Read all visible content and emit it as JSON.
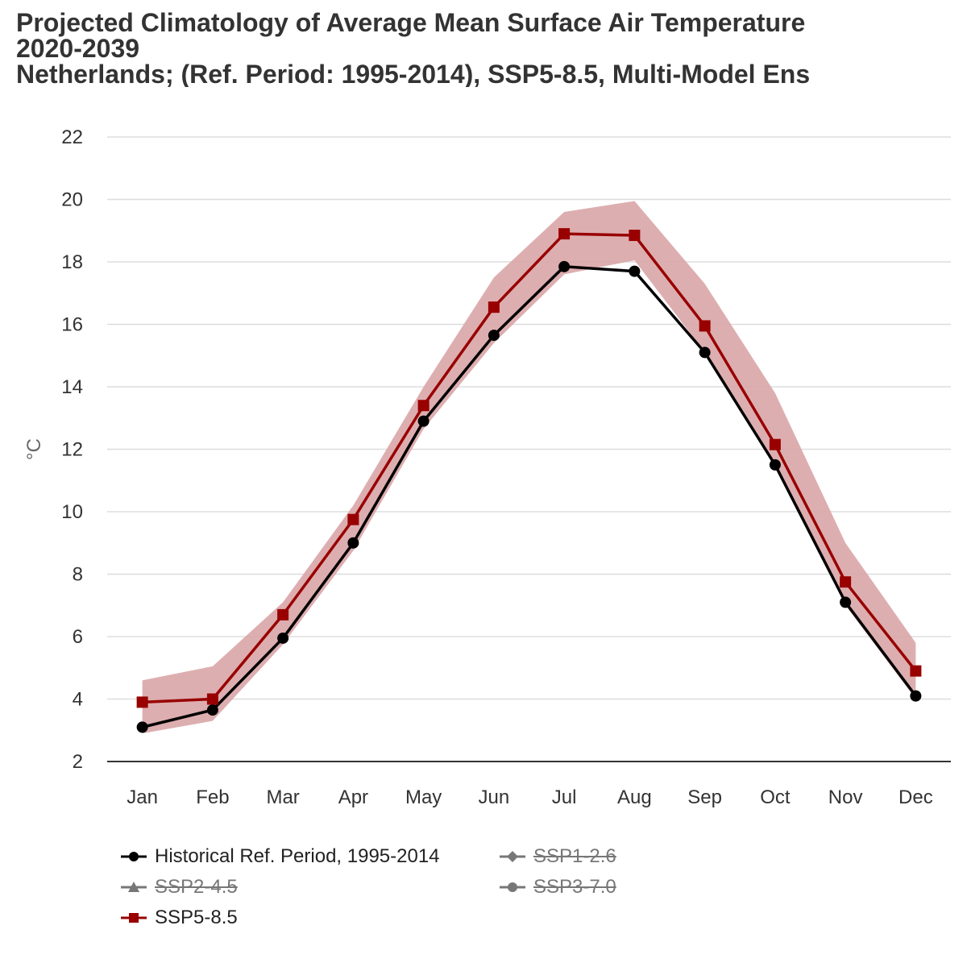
{
  "title": {
    "line1": "Projected Climatology of Average Mean Surface Air Temperature",
    "line2": "2020-2039",
    "line3": "Netherlands; (Ref. Period: 1995-2014), SSP5-8.5, Multi-Model Ens"
  },
  "colors": {
    "historical": "#000000",
    "ssp585": "#990000",
    "band": "#d9a5a7",
    "hidden": "#777777",
    "grid": "#dddddd",
    "axis": "#333333"
  },
  "legend": [
    {
      "label": "Historical Ref. Period, 1995-2014",
      "marker": "circle-icon",
      "visible": true,
      "color": "#000000"
    },
    {
      "label": "SSP1-2.6",
      "marker": "diamond-icon",
      "visible": false,
      "color": "#777777"
    },
    {
      "label": "SSP2-4.5",
      "marker": "triangle-icon",
      "visible": false,
      "color": "#777777"
    },
    {
      "label": "SSP3-7.0",
      "marker": "circle-icon",
      "visible": false,
      "color": "#777777"
    },
    {
      "label": "SSP5-8.5",
      "marker": "square-icon",
      "visible": true,
      "color": "#990000"
    }
  ],
  "chart_data": {
    "type": "line",
    "ylabel": "°C",
    "xlabel": "",
    "ylim": [
      2,
      22
    ],
    "yticks": [
      2,
      4,
      6,
      8,
      10,
      12,
      14,
      16,
      18,
      20,
      22
    ],
    "grid": true,
    "legend_position": "bottom",
    "categories": [
      "Jan",
      "Feb",
      "Mar",
      "Apr",
      "May",
      "Jun",
      "Jul",
      "Aug",
      "Sep",
      "Oct",
      "Nov",
      "Dec"
    ],
    "series": [
      {
        "name": "Historical Ref. Period, 1995-2014",
        "marker": "circle",
        "values": [
          3.1,
          3.65,
          5.95,
          9.0,
          12.9,
          15.65,
          17.85,
          17.7,
          15.1,
          11.5,
          7.1,
          4.1
        ]
      },
      {
        "name": "SSP5-8.5",
        "marker": "square",
        "values": [
          3.9,
          4.0,
          6.7,
          9.75,
          13.4,
          16.55,
          18.9,
          18.85,
          15.95,
          12.15,
          7.75,
          4.9
        ],
        "range_low": [
          2.9,
          3.3,
          5.75,
          8.75,
          12.65,
          15.4,
          17.6,
          18.05,
          15.1,
          11.4,
          7.0,
          4.0
        ],
        "range_high": [
          4.6,
          5.05,
          7.1,
          10.2,
          14.0,
          17.5,
          19.6,
          19.95,
          17.3,
          13.8,
          9.0,
          5.8
        ]
      }
    ]
  }
}
